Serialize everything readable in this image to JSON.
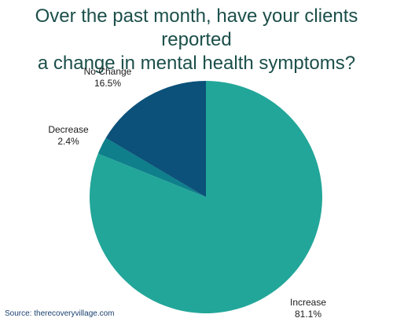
{
  "chart_data": {
    "type": "pie",
    "title_lines": [
      "Over the past month, have your clients reported",
      "a change in mental health symptoms?"
    ],
    "slices": [
      {
        "label": "Increase",
        "value": 81.1,
        "value_label": "81.1%",
        "color": "#22a699"
      },
      {
        "label": "Decrease",
        "value": 2.4,
        "value_label": "2.4%",
        "color": "#0e7f8b"
      },
      {
        "label": "No Change",
        "value": 16.5,
        "value_label": "16.5%",
        "color": "#0b5179"
      }
    ]
  },
  "source": "Source: therecoveryvillage.com"
}
